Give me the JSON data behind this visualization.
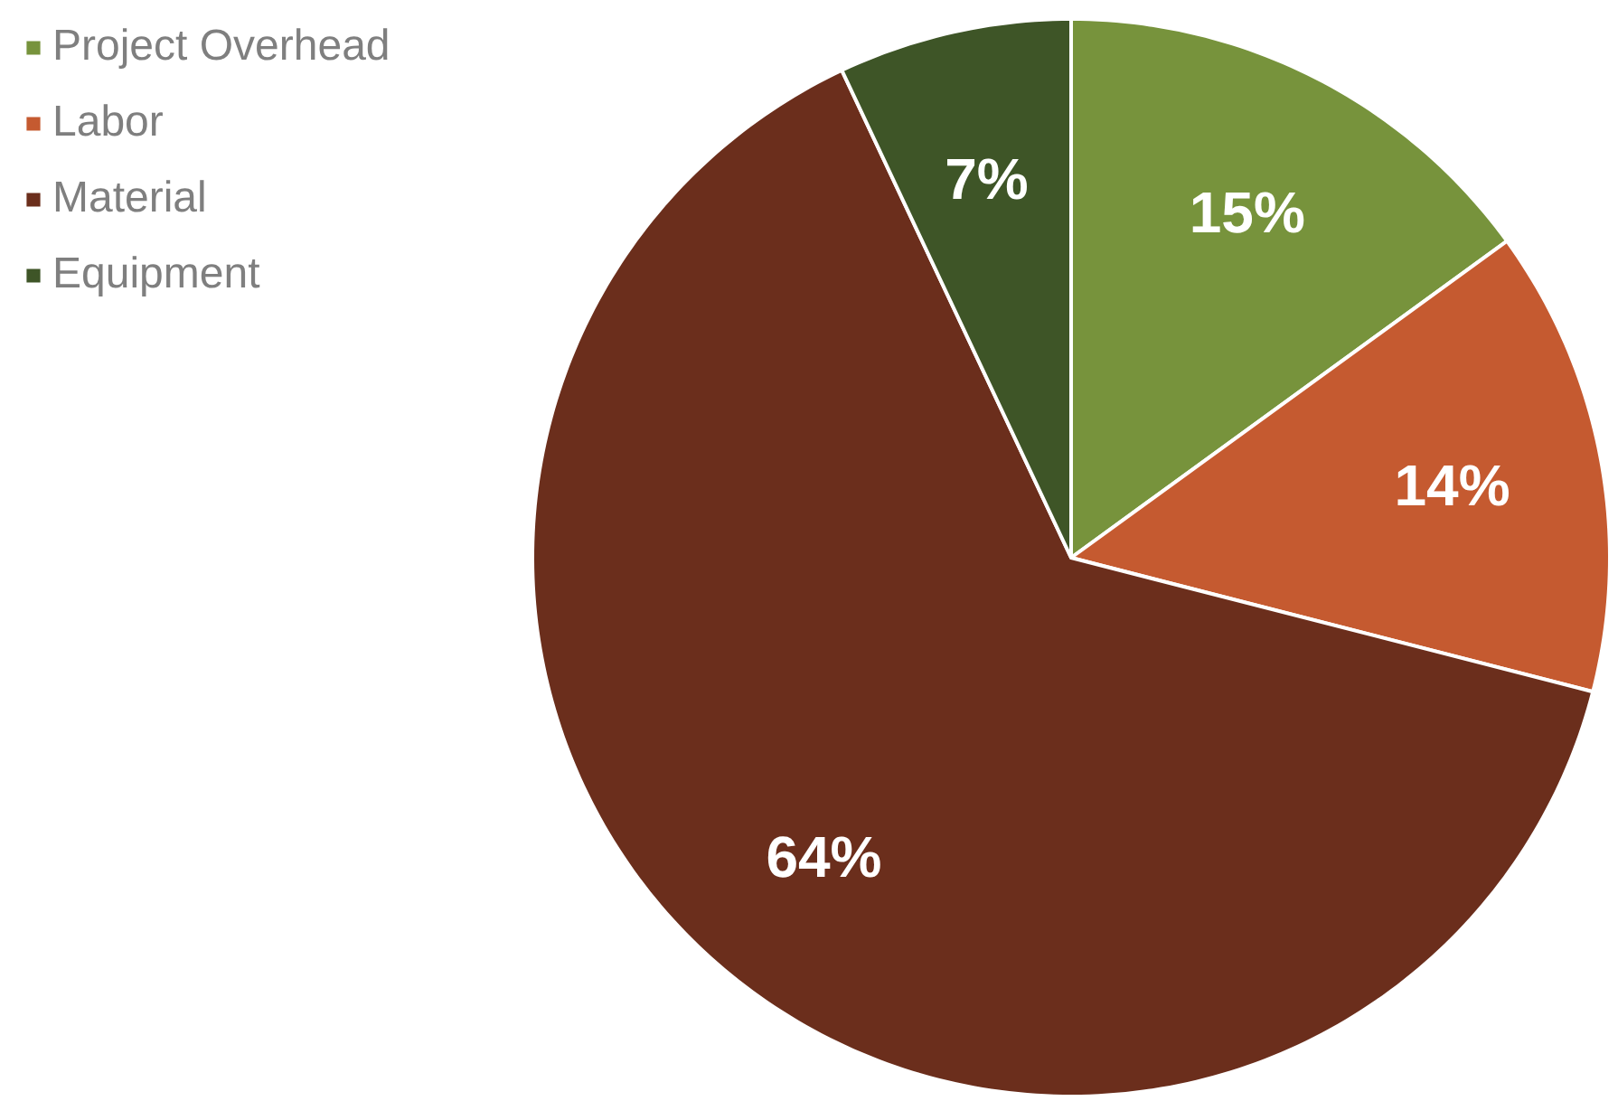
{
  "chart_data": {
    "type": "pie",
    "categories": [
      "Project Overhead",
      "Labor",
      "Material",
      "Equipment"
    ],
    "values": [
      15,
      14,
      64,
      7
    ],
    "colors": [
      "#77933c",
      "#c55a30",
      "#6b2e1c",
      "#3e5527"
    ],
    "value_labels": [
      "15%",
      "14%",
      "64%",
      "7%"
    ],
    "legend": "top left"
  }
}
